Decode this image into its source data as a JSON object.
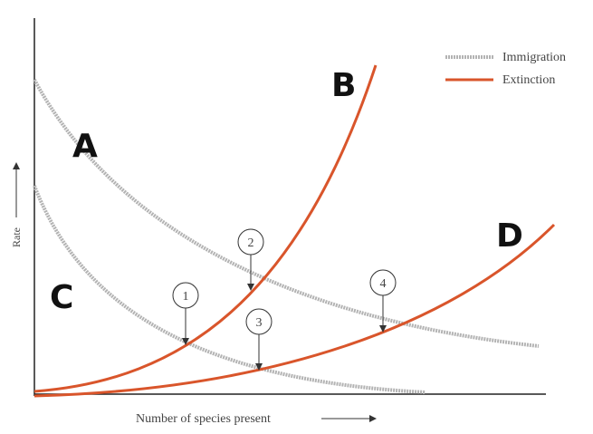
{
  "axes": {
    "y_label": "Rate",
    "x_label": "Number of species present"
  },
  "legend": [
    {
      "label": "Immigration"
    },
    {
      "label": "Extinction"
    }
  ],
  "curve_labels": [
    "A",
    "B",
    "C",
    "D"
  ],
  "markers": [
    "1",
    "2",
    "3",
    "4"
  ]
}
